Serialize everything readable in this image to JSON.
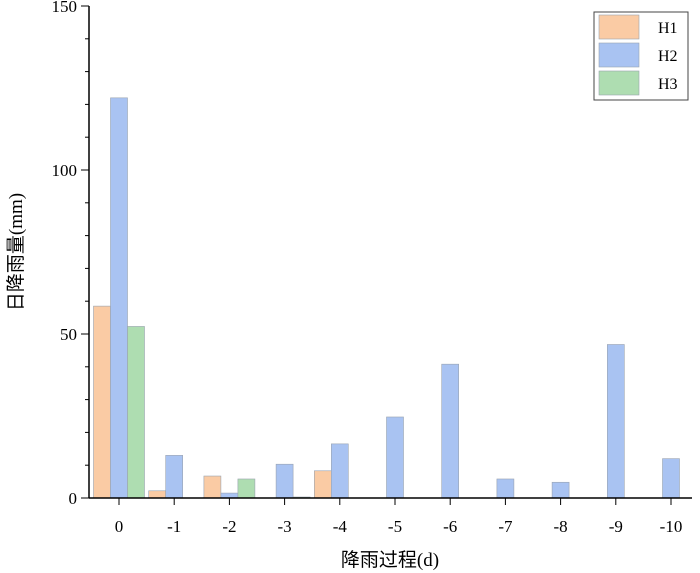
{
  "chart_data": {
    "type": "bar",
    "categories": [
      "0",
      "-1",
      "-2",
      "-3",
      "-4",
      "-5",
      "-6",
      "-7",
      "-8",
      "-9",
      "-10"
    ],
    "series": [
      {
        "name": "H1",
        "color": "#FACBA4",
        "values": [
          58.5,
          2.2,
          6.7,
          0,
          8.3,
          0,
          0,
          0,
          0,
          0,
          0
        ]
      },
      {
        "name": "H2",
        "color": "#A9C3F2",
        "values": [
          122,
          13,
          1.5,
          10.3,
          16.5,
          24.7,
          40.8,
          5.8,
          4.8,
          46.8,
          12
        ]
      },
      {
        "name": "H3",
        "color": "#AEDDB1",
        "values": [
          52.3,
          0,
          5.8,
          0.3,
          0,
          0,
          0,
          0,
          0,
          0,
          0
        ]
      }
    ],
    "xlabel": "降雨过程(d)",
    "ylabel": "日降雨量(mm)",
    "ylim": [
      0,
      150
    ],
    "yticks": [
      "0",
      "50",
      "100",
      "150"
    ],
    "legend_position": "top-right",
    "grid": false
  }
}
